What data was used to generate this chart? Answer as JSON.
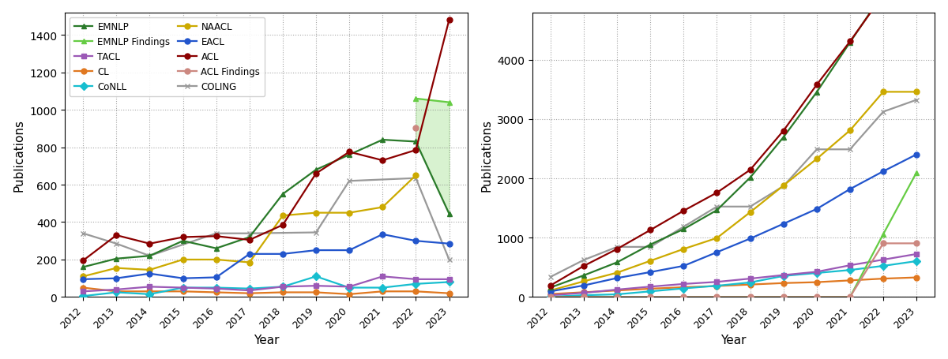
{
  "years": [
    2012,
    2013,
    2014,
    2015,
    2016,
    2017,
    2018,
    2019,
    2020,
    2021,
    2022,
    2023
  ],
  "series": {
    "EMNLP": [
      160,
      205,
      220,
      300,
      260,
      320,
      550,
      680,
      760,
      840,
      830,
      445
    ],
    "EMNLP Findings": [
      0,
      0,
      0,
      0,
      0,
      0,
      0,
      0,
      0,
      0,
      1060,
      1040
    ],
    "TACL": [
      30,
      40,
      55,
      50,
      45,
      35,
      55,
      60,
      55,
      110,
      95,
      95
    ],
    "CL": [
      50,
      30,
      30,
      30,
      25,
      20,
      25,
      25,
      15,
      30,
      30,
      20
    ],
    "CoNLL": [
      5,
      25,
      15,
      50,
      50,
      45,
      55,
      110,
      50,
      50,
      70,
      80
    ],
    "NAACL": [
      110,
      155,
      145,
      200,
      200,
      185,
      435,
      450,
      450,
      480,
      650,
      0
    ],
    "EACL": [
      95,
      100,
      125,
      100,
      105,
      230,
      230,
      250,
      250,
      335,
      300,
      285
    ],
    "ACL": [
      195,
      330,
      285,
      320,
      325,
      305,
      385,
      660,
      775,
      730,
      785,
      1480
    ],
    "ACL Findings": [
      0,
      0,
      0,
      0,
      0,
      0,
      0,
      0,
      0,
      0,
      905,
      0
    ],
    "COLING": [
      340,
      285,
      220,
      0,
      340,
      340,
      0,
      345,
      620,
      0,
      635,
      200
    ]
  },
  "colors": {
    "EMNLP": "#2a7a2a",
    "EMNLP Findings": "#66cc44",
    "TACL": "#9b59b6",
    "CL": "#e07820",
    "CoNLL": "#17becf",
    "NAACL": "#ccaa00",
    "EACL": "#2255cc",
    "ACL": "#8b0000",
    "ACL Findings": "#cc8880",
    "COLING": "#999999"
  },
  "markers": {
    "EMNLP": "^",
    "EMNLP Findings": "^",
    "TACL": "s",
    "CL": "o",
    "CoNLL": "D",
    "NAACL": "o",
    "EACL": "o",
    "ACL": "o",
    "ACL Findings": "o",
    "COLING": "x"
  },
  "ylabel": "Publications",
  "xlabel": "Year",
  "left_ylim": [
    0,
    1520
  ],
  "right_ylim": [
    0,
    4800
  ],
  "left_yticks": [
    0,
    200,
    400,
    600,
    800,
    1000,
    1200,
    1400
  ],
  "right_yticks": [
    0,
    1000,
    2000,
    3000,
    4000
  ]
}
